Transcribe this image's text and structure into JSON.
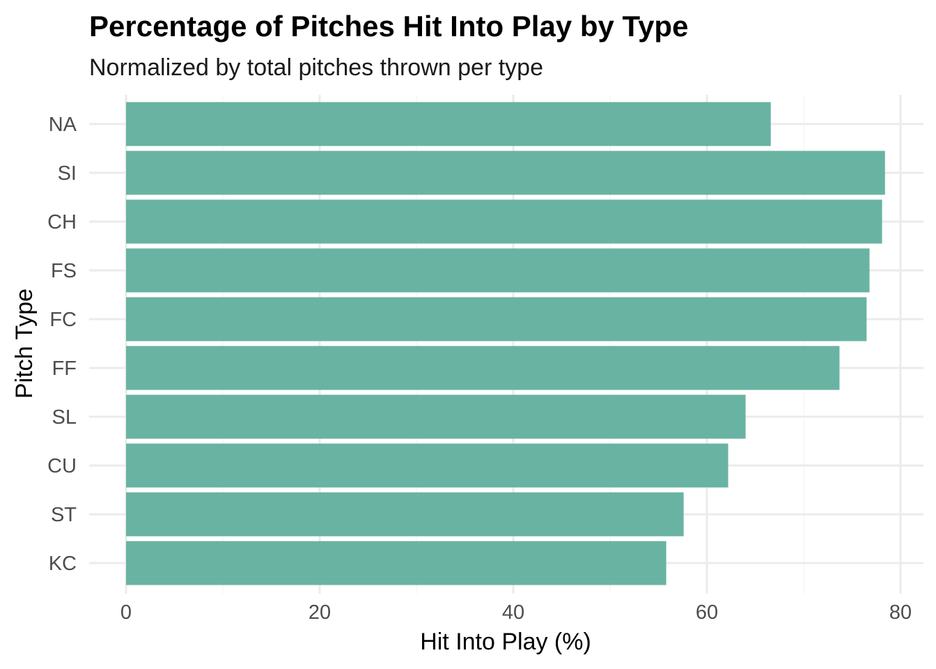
{
  "chart_data": {
    "type": "bar",
    "orientation": "horizontal",
    "title": "Percentage of Pitches Hit Into Play by Type",
    "subtitle": "Normalized by total pitches thrown per type",
    "xlabel": "Hit Into Play (%)",
    "ylabel": "Pitch Type",
    "categories": [
      "NA",
      "SI",
      "CH",
      "FS",
      "FC",
      "FF",
      "SL",
      "CU",
      "ST",
      "KC"
    ],
    "values": [
      66.6,
      78.4,
      78.1,
      76.8,
      76.5,
      73.7,
      64.0,
      62.2,
      57.6,
      55.8
    ],
    "xlim": [
      0,
      80
    ],
    "xticks": [
      0,
      20,
      40,
      60,
      80
    ],
    "xtick_labels": [
      "0",
      "20",
      "40",
      "60",
      "80"
    ],
    "grid": true,
    "colors": {
      "bar": "#69b3a2",
      "grid_major": "#ebebeb",
      "grid_minor": "#f5f5f5"
    }
  }
}
